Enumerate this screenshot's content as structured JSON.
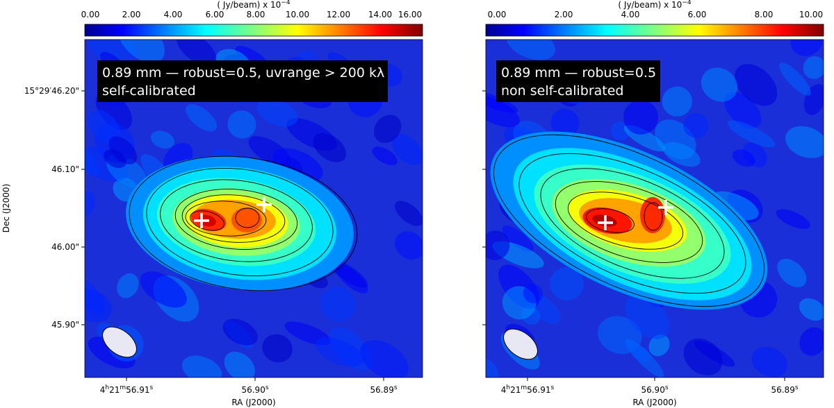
{
  "panels": [
    {
      "id": "left",
      "colorbar": {
        "label": "( Jy/beam) x 10",
        "label_exp": "−4",
        "ticks": [
          "0.00",
          "2.00",
          "4.00",
          "6.00",
          "8.00",
          "10.00",
          "12.00",
          "14.00",
          "16.00"
        ],
        "range": [
          0,
          16.3
        ],
        "colormap": "jet"
      },
      "annotation": {
        "line1": "0.89 mm — robust=0.5, uvrange > 200 kλ",
        "line2": "self-calibrated"
      },
      "x_label": "RA (J2000)",
      "y_label": "Dec (J2000)",
      "x_ticks": [
        {
          "h": "4",
          "m": "21",
          "s": "56.91"
        },
        {
          "s": "56.90"
        },
        {
          "s": "56.89"
        }
      ],
      "y_ticks": [
        "15°29′46.20\"",
        "46.10\"",
        "46.00\"",
        "45.90\""
      ],
      "image": {
        "peak_a": 14.5,
        "peak_b": 13.0,
        "contour_levels": [
          1.5,
          3,
          5,
          8,
          10,
          11.5,
          13
        ]
      }
    },
    {
      "id": "right",
      "colorbar": {
        "label": "( Jy/beam) x 10",
        "label_exp": "−4",
        "ticks": [
          "0.00",
          "2.00",
          "4.00",
          "6.00",
          "8.00",
          "10.00"
        ],
        "range": [
          0,
          10
        ],
        "colormap": "jet"
      },
      "annotation": {
        "line1": "0.89 mm — robust=0.5",
        "line2": "non self-calibrated"
      },
      "x_label": "RA (J2000)",
      "y_label": "",
      "x_ticks": [
        {
          "h": "4",
          "m": "21",
          "s": "56.91"
        },
        {
          "s": "56.90"
        },
        {
          "s": "56.89"
        }
      ],
      "y_ticks": [],
      "image": {
        "peak_a": 9.8,
        "peak_b": 9.0,
        "contour_levels": [
          1.0,
          2.2,
          3.5,
          5.0,
          6.5,
          8.0
        ]
      }
    }
  ],
  "markers": "white plus",
  "beam": "white ellipse"
}
